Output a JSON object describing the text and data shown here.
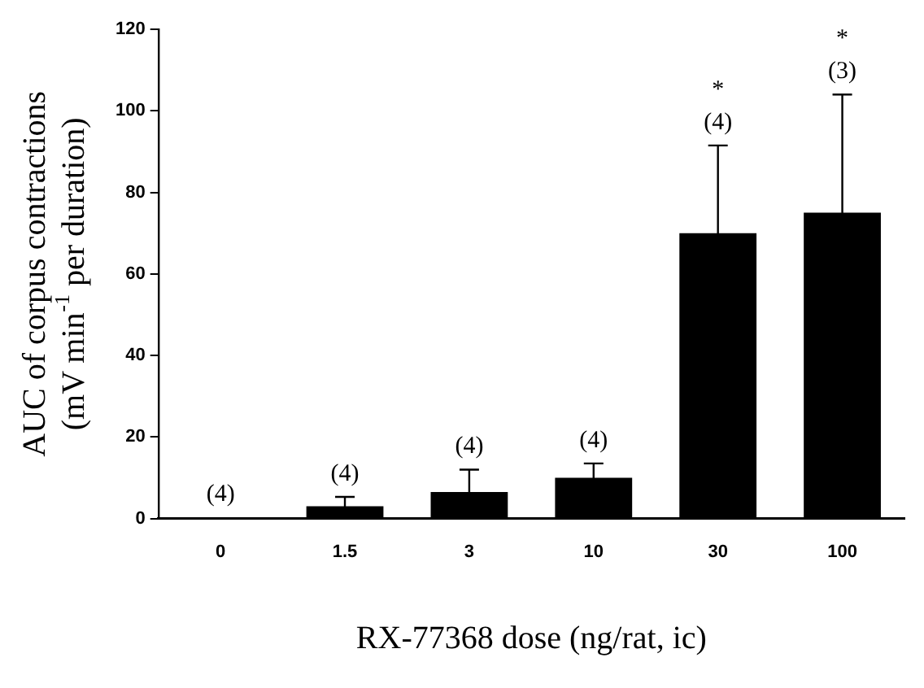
{
  "chart_data": {
    "type": "bar",
    "xlabel": "RX-77368 dose (ng/rat, ic)",
    "ylabel": "AUC of corpus contractions\n(mV min$^{-1}$ per duration)",
    "categories": [
      "0",
      "1.5",
      "3",
      "10",
      "30",
      "100"
    ],
    "values": [
      0.3,
      3,
      6.5,
      10,
      70,
      75
    ],
    "color": "#000000",
    "errors": [
      null,
      2.3,
      5.5,
      3.5,
      21.5,
      29
    ],
    "ylim": [
      0,
      120
    ],
    "yticks": [
      0,
      20,
      40,
      60,
      80,
      100,
      120
    ],
    "grid": false,
    "legend": false,
    "annotations": [
      {
        "text": "(4)",
        "x": "0",
        "y": 0.3
      },
      {
        "text": "(4)",
        "x": "1.5",
        "y": 3
      },
      {
        "text": "(4)",
        "x": "3",
        "y": 6.5
      },
      {
        "text": "(4)",
        "x": "10",
        "y": 10
      },
      "(4)",
      "*",
      "(3)",
      "*"
    ]
  }
}
